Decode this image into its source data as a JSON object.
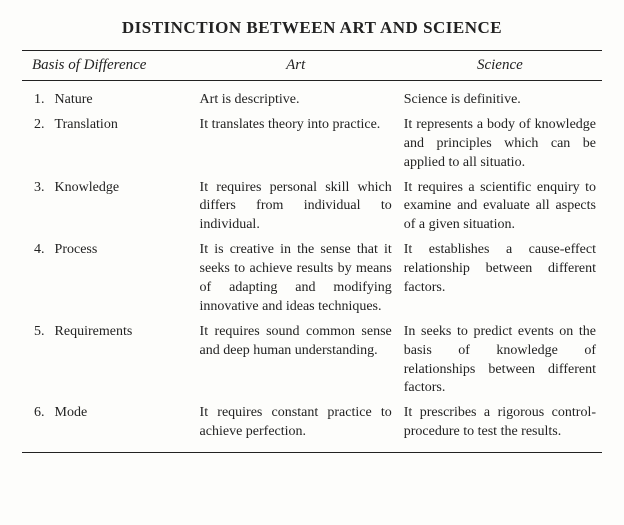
{
  "title": "DISTINCTION BETWEEN ART AND SCIENCE",
  "headers": {
    "basis": "Basis of Difference",
    "art": "Art",
    "science": "Science"
  },
  "rows": [
    {
      "num": "1.",
      "basis": "Nature",
      "art": "Art is descriptive.",
      "science": "Science is definitive."
    },
    {
      "num": "2.",
      "basis": "Translation",
      "art": "It translates theory into practice.",
      "science": "It represents a body of knowledge and principles which can be applied to all situatio."
    },
    {
      "num": "3.",
      "basis": "Knowledge",
      "art": "It requires personal skill which differs from individual to individual.",
      "science": "It requires a scientific enquiry to examine and evaluate all aspects of a given situation."
    },
    {
      "num": "4.",
      "basis": "Process",
      "art": "It is creative in the sense that it seeks to achieve results by means of adapting and modifying innovative and ideas techniques.",
      "science": "It establishes a cause-effect relationship between different factors."
    },
    {
      "num": "5.",
      "basis": "Requirements",
      "art": "It requires sound common sense and deep human understanding.",
      "science": "In seeks to predict events on the basis of knowledge of relationships between different factors."
    },
    {
      "num": "6.",
      "basis": "Mode",
      "art": "It requires constant practice to achieve perfection.",
      "science": "It prescribes a rigorous control-procedure to test the results."
    }
  ]
}
